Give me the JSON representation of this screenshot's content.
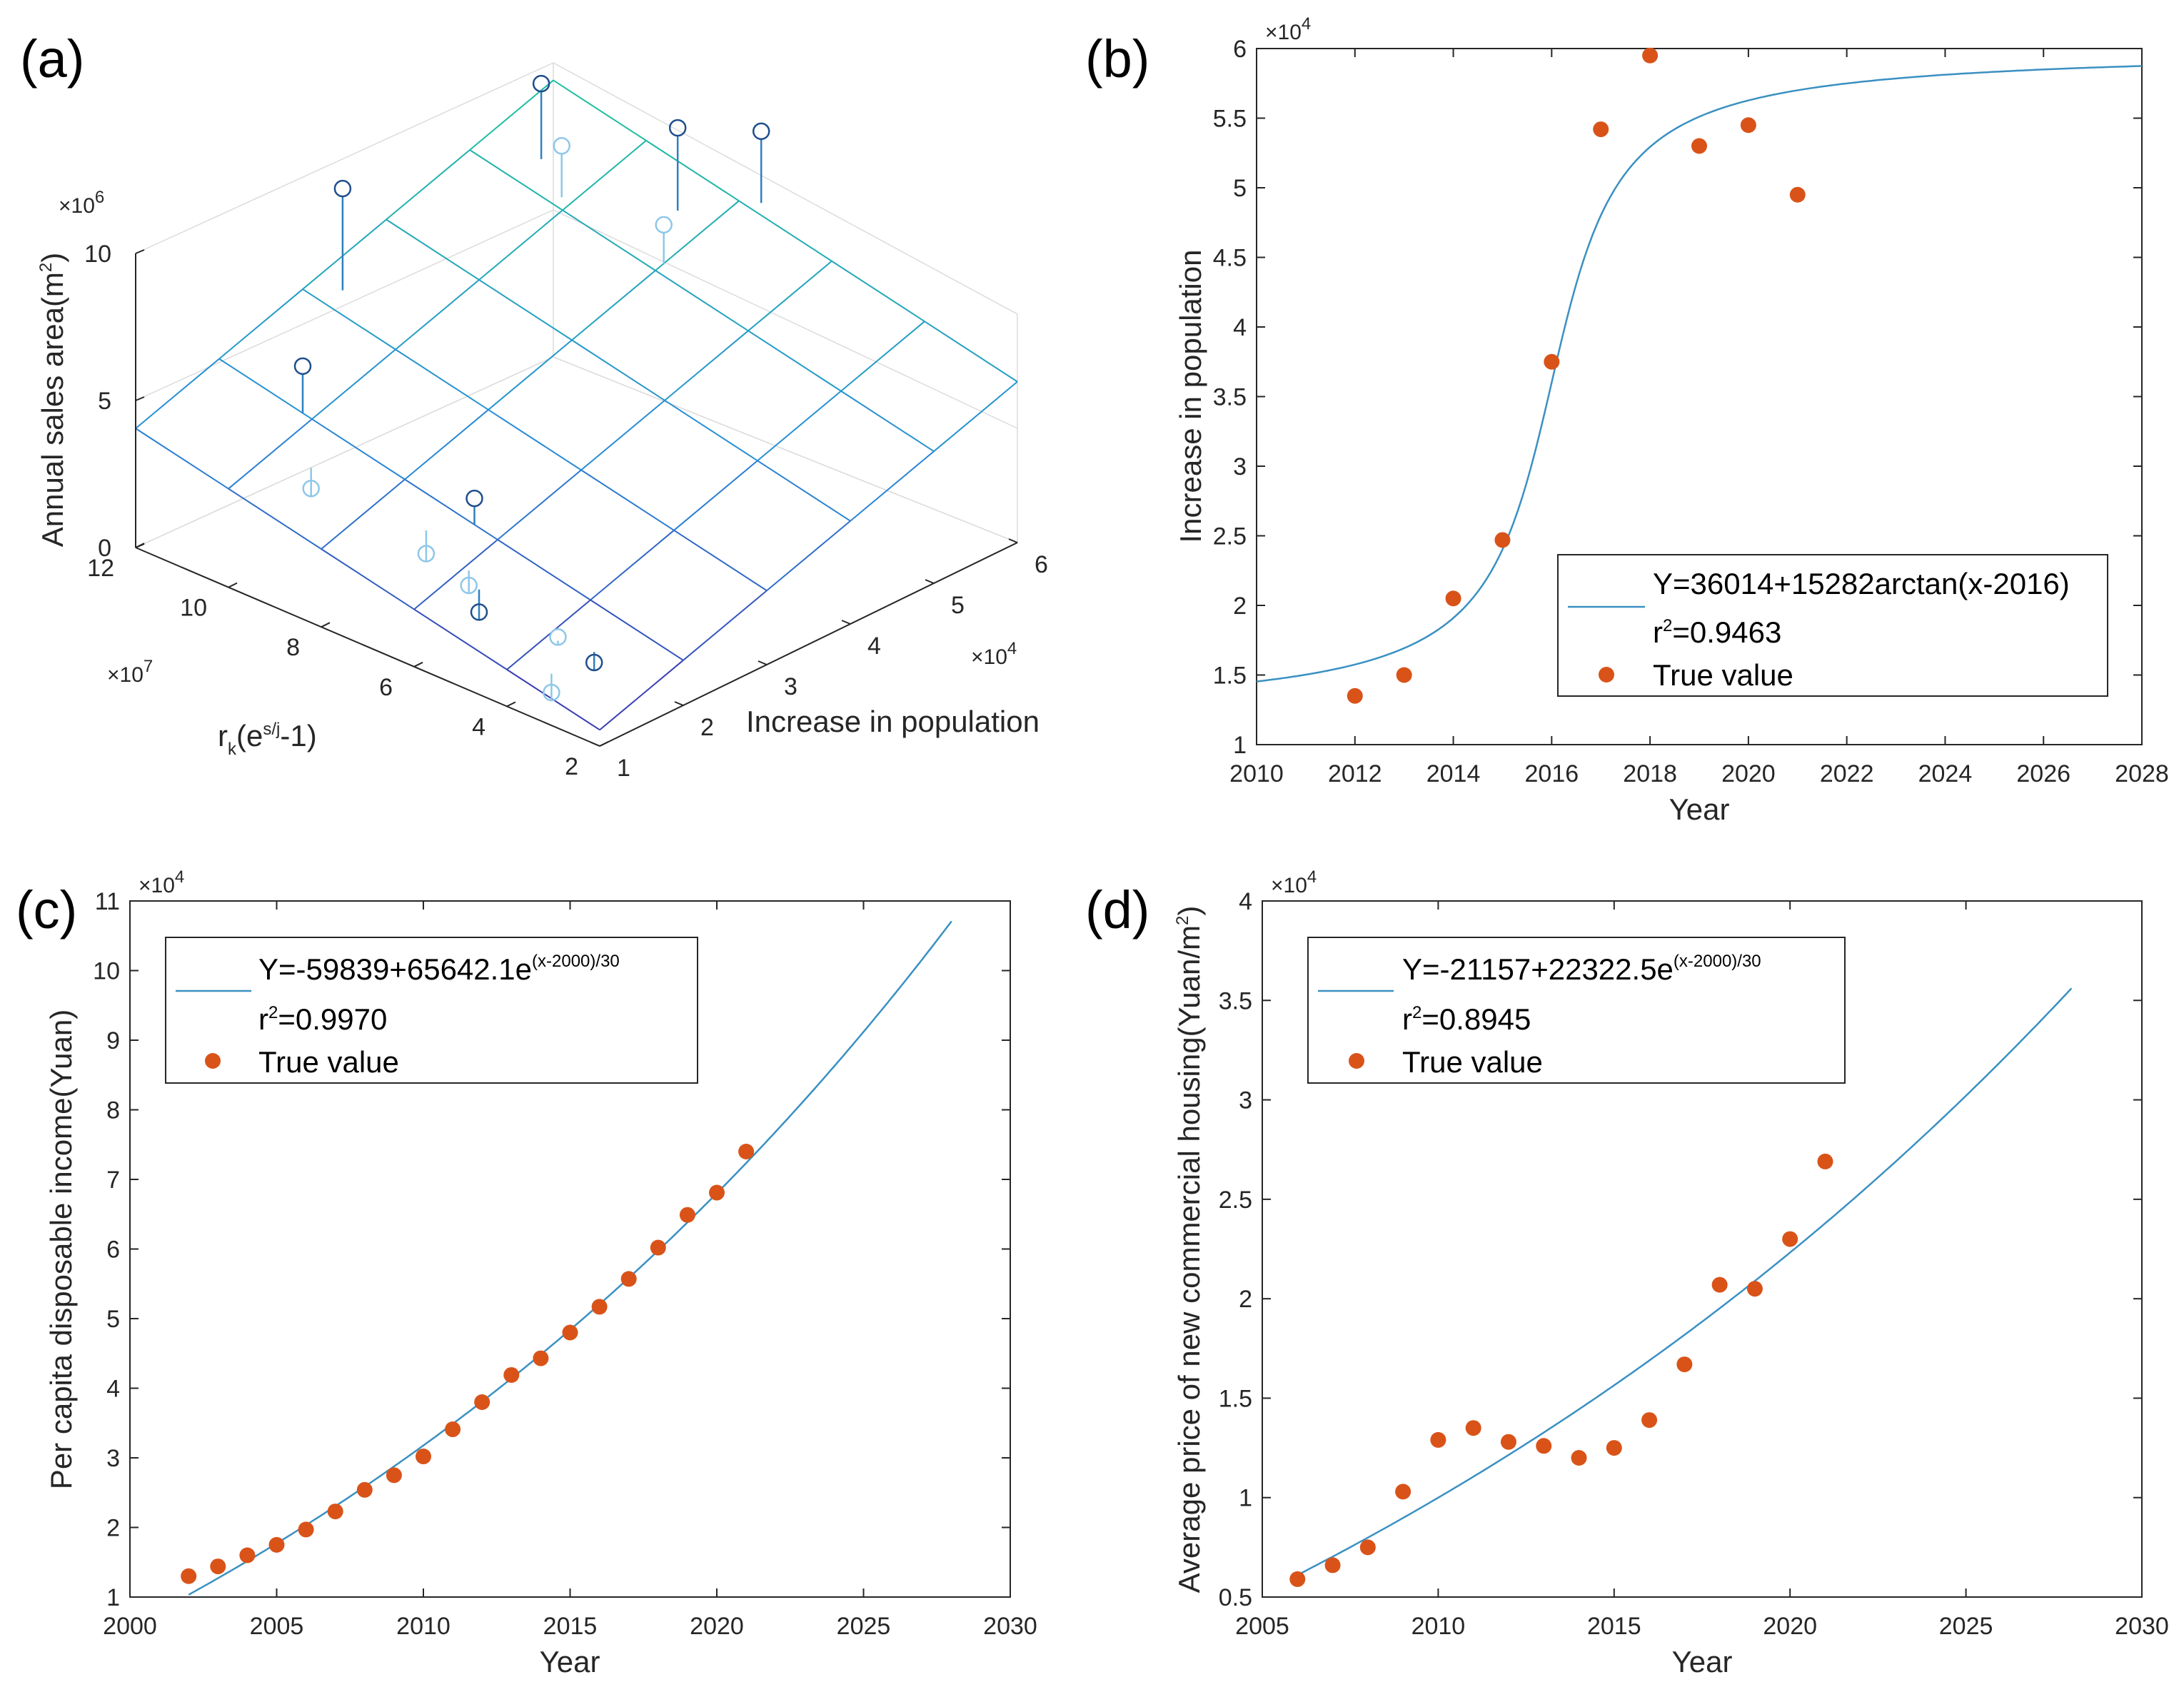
{
  "chart_data": [
    {
      "panel": "(a)",
      "type": "scatter3d",
      "title": "",
      "zlabel": "Annual sales area(m2)",
      "zlabel_base": "Annual sales area(m",
      "zlabel_sup": "2",
      "zlabel_end": ")",
      "ylabel": "Increase in population",
      "xlabel_base": "r",
      "xlabel_sub": "k",
      "xlabel_mid": "(e",
      "xlabel_sup": "s/j",
      "xlabel_end": "-1)",
      "zlim": [
        0,
        10
      ],
      "ylim": [
        1,
        6
      ],
      "xlim": [
        2,
        12
      ],
      "z_ticks": [
        "0",
        "5",
        "10"
      ],
      "y_ticks": [
        "1",
        "2",
        "3",
        "4",
        "5",
        "6"
      ],
      "x_ticks": [
        "2",
        "4",
        "6",
        "8",
        "10",
        "12"
      ],
      "z_multiplier": "×10",
      "z_multiplier_exp": "6",
      "y_multiplier": "×10",
      "y_multiplier_exp": "4",
      "x_multiplier": "×10",
      "x_multiplier_exp": "7",
      "points": [
        {
          "x": 10.2,
          "y": 2.0,
          "z": 6.0
        },
        {
          "x": 9.3,
          "y": 1.6,
          "z": 3.0
        },
        {
          "x": 11.5,
          "y": 3.2,
          "z": 9.5
        },
        {
          "x": 7.0,
          "y": 1.7,
          "z": 2.2
        },
        {
          "x": 6.5,
          "y": 2.0,
          "z": 4.0
        },
        {
          "x": 5.9,
          "y": 1.6,
          "z": 2.0
        },
        {
          "x": 5.5,
          "y": 1.5,
          "z": 1.5
        },
        {
          "x": 3.8,
          "y": 1.5,
          "z": 1.8
        },
        {
          "x": 3.2,
          "y": 1.6,
          "z": 1.2
        },
        {
          "x": 3.4,
          "y": 1.2,
          "z": 0.6
        },
        {
          "x": 11.0,
          "y": 5.3,
          "z": 10.5
        },
        {
          "x": 10.2,
          "y": 5.1,
          "z": 9.2
        },
        {
          "x": 8.6,
          "y": 5.6,
          "z": 10.2
        },
        {
          "x": 8.0,
          "y": 5.1,
          "z": 8.0
        },
        {
          "x": 7.7,
          "y": 6.1,
          "z": 10.0
        }
      ]
    },
    {
      "panel": "(b)",
      "type": "line+scatter",
      "xlabel": "Year",
      "ylabel": "Increase in population",
      "xlim": [
        2010,
        2028
      ],
      "ylim": [
        1,
        6
      ],
      "x_ticks": [
        "2010",
        "2012",
        "2014",
        "2016",
        "2018",
        "2020",
        "2022",
        "2024",
        "2026",
        "2028"
      ],
      "y_ticks": [
        "1",
        "1.5",
        "2",
        "2.5",
        "3",
        "3.5",
        "4",
        "4.5",
        "5",
        "5.5",
        "6"
      ],
      "y_multiplier": "×10",
      "y_multiplier_exp": "4",
      "legend": {
        "location": "bottom-right",
        "fit_label": "Y=36014+15282arctan(x-2016)",
        "r2_base": "r",
        "r2_sup": "2",
        "r2_value": "=0.9463",
        "points_label": "True value"
      },
      "fit": {
        "a": 36014,
        "b": 15282,
        "x0": 2016,
        "form": "a+b*atan(x-x0)"
      },
      "series": [
        {
          "name": "True value",
          "x": [
            2012,
            2013,
            2014,
            2015,
            2016,
            2017,
            2018,
            2019,
            2020,
            2021
          ],
          "y": [
            1.35,
            1.5,
            2.05,
            2.47,
            3.75,
            5.42,
            5.95,
            5.3,
            5.45,
            4.95
          ]
        }
      ]
    },
    {
      "panel": "(c)",
      "type": "line+scatter",
      "xlabel": "Year",
      "ylabel": "Per capita disposable income(Yuan)",
      "xlim": [
        2000,
        2030
      ],
      "ylim": [
        1,
        11
      ],
      "x_ticks": [
        "2000",
        "2005",
        "2010",
        "2015",
        "2020",
        "2025",
        "2030"
      ],
      "y_ticks": [
        "1",
        "2",
        "3",
        "4",
        "5",
        "6",
        "7",
        "8",
        "9",
        "10",
        "11"
      ],
      "y_multiplier": "×10",
      "y_multiplier_exp": "4",
      "legend": {
        "location": "top-left",
        "fit_label_base": "Y=-59839+65642.1e",
        "fit_label_sup": "(x-2000)/30",
        "r2_base": "r",
        "r2_sup": "2",
        "r2_value": "=0.9970",
        "points_label": "True value"
      },
      "fit": {
        "a": -59839,
        "b": 65642.1,
        "x0": 2000,
        "k": 30,
        "x_range": [
          2002,
          2028
        ],
        "form": "a+b*exp((x-x0)/k)"
      },
      "series": [
        {
          "name": "True value",
          "x": [
            2002,
            2003,
            2004,
            2005,
            2006,
            2007,
            2008,
            2009,
            2010,
            2011,
            2012,
            2013,
            2014,
            2015,
            2016,
            2017,
            2018,
            2019,
            2020,
            2021
          ],
          "y": [
            1.3,
            1.44,
            1.6,
            1.75,
            1.97,
            2.23,
            2.54,
            2.75,
            3.02,
            3.41,
            3.8,
            4.19,
            4.43,
            4.8,
            5.17,
            5.57,
            6.02,
            6.49,
            6.81,
            7.4
          ]
        }
      ]
    },
    {
      "panel": "(d)",
      "type": "line+scatter",
      "xlabel": "Year",
      "ylabel_base": "Average price of new commercial housing(Yuan/m",
      "ylabel_sup": "2",
      "ylabel_end": ")",
      "xlim": [
        2005,
        2030
      ],
      "ylim": [
        0.5,
        4
      ],
      "x_ticks": [
        "2005",
        "2010",
        "2015",
        "2020",
        "2025",
        "2030"
      ],
      "y_ticks": [
        "0.5",
        "1",
        "1.5",
        "2",
        "2.5",
        "3",
        "3.5",
        "4"
      ],
      "y_multiplier": "×10",
      "y_multiplier_exp": "4",
      "legend": {
        "location": "top-left",
        "fit_label_base": "Y=-21157+22322.5e",
        "fit_label_sup": "(x-2000)/30",
        "r2_base": "r",
        "r2_sup": "2",
        "r2_value": "=0.8945",
        "points_label": "True value"
      },
      "fit": {
        "a": -21157,
        "b": 22322.5,
        "x0": 2000,
        "k": 30,
        "x_range": [
          2006,
          2028
        ],
        "form": "a+b*exp((x-x0)/k)"
      },
      "series": [
        {
          "name": "True value",
          "x": [
            2006,
            2007,
            2008,
            2009,
            2010,
            2011,
            2012,
            2013,
            2014,
            2015,
            2016,
            2017,
            2018,
            2019,
            2020,
            2021
          ],
          "y": [
            0.59,
            0.66,
            0.75,
            1.03,
            1.29,
            1.35,
            1.28,
            1.26,
            1.2,
            1.25,
            1.39,
            1.67,
            2.07,
            2.05,
            2.3,
            2.69
          ]
        }
      ]
    }
  ],
  "colors": {
    "fit": "#3a90c2",
    "points": "#d95319",
    "axis": "#262626"
  }
}
